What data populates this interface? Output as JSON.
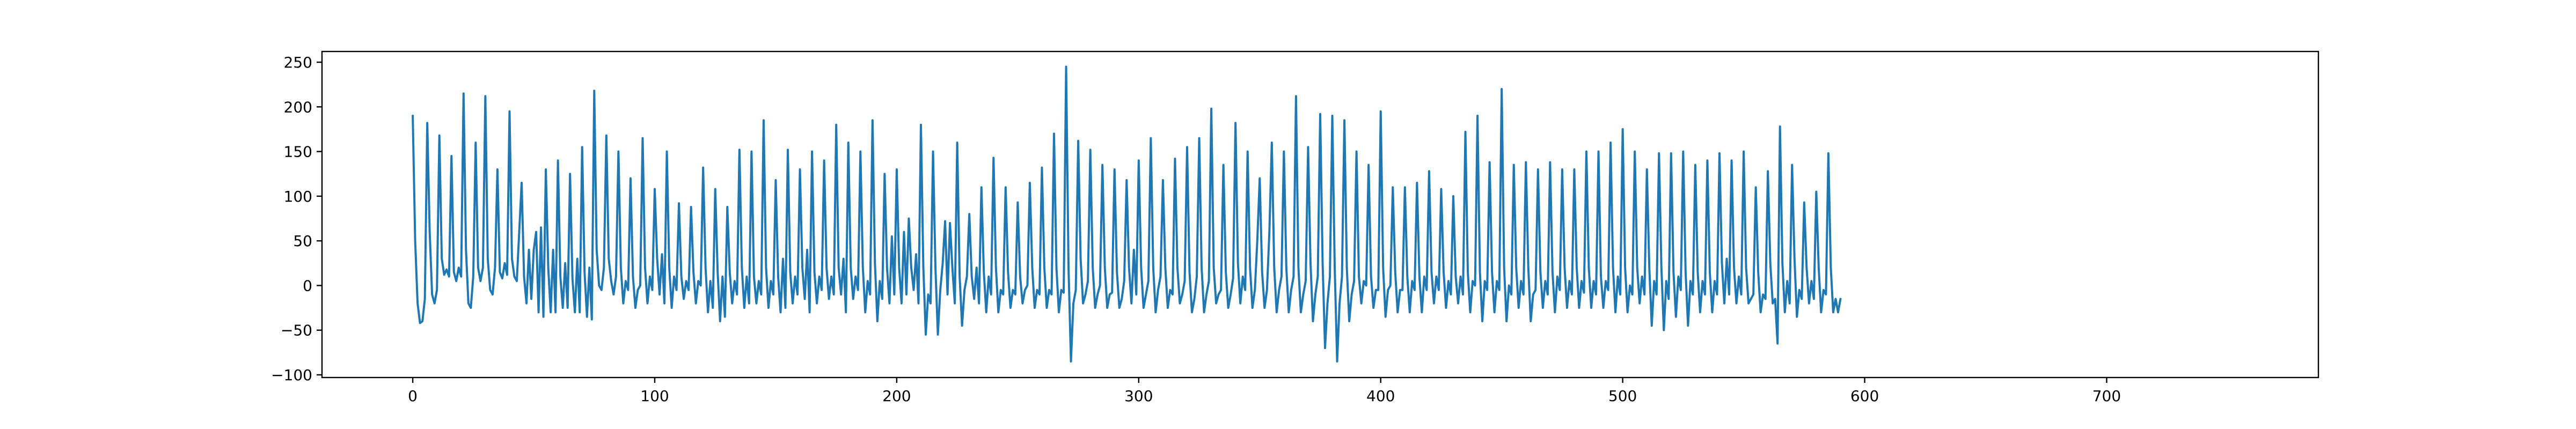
{
  "chart_data": {
    "type": "line",
    "title": "",
    "xlabel": "",
    "ylabel": "",
    "xlim": [
      -37.5,
      787.5
    ],
    "ylim": [
      -103,
      262
    ],
    "x_ticks": [
      0,
      100,
      200,
      300,
      400,
      500,
      600,
      700
    ],
    "y_ticks": [
      -100,
      -50,
      0,
      50,
      100,
      150,
      200,
      250
    ],
    "grid": false,
    "legend": "none",
    "colors": {
      "series": "#1f77b4",
      "axis": "#000000",
      "background": "#ffffff"
    },
    "series": [
      {
        "x_start": 0,
        "x_step": 1,
        "values": [
          190,
          50,
          -20,
          -42,
          -40,
          -15,
          182,
          60,
          -10,
          -20,
          -5,
          168,
          30,
          12,
          18,
          10,
          145,
          15,
          5,
          20,
          10,
          215,
          40,
          -20,
          -25,
          10,
          160,
          20,
          5,
          20,
          212,
          30,
          -5,
          -10,
          20,
          130,
          15,
          8,
          25,
          12,
          195,
          30,
          10,
          5,
          60,
          115,
          10,
          -20,
          40,
          -15,
          40,
          60,
          -30,
          65,
          -35,
          130,
          20,
          -30,
          40,
          -30,
          140,
          10,
          -25,
          25,
          -25,
          125,
          8,
          -30,
          30,
          -30,
          155,
          15,
          -35,
          20,
          -38,
          218,
          40,
          0,
          -5,
          20,
          168,
          30,
          5,
          -10,
          10,
          150,
          20,
          -20,
          5,
          -5,
          120,
          10,
          -25,
          -5,
          0,
          165,
          20,
          -20,
          10,
          -5,
          108,
          30,
          -10,
          35,
          -20,
          150,
          20,
          -25,
          10,
          -5,
          92,
          10,
          -15,
          5,
          -5,
          88,
          15,
          -20,
          5,
          0,
          132,
          20,
          -30,
          5,
          -25,
          108,
          15,
          -40,
          10,
          -35,
          88,
          15,
          -20,
          5,
          -10,
          152,
          20,
          -25,
          10,
          -20,
          150,
          10,
          -20,
          5,
          -10,
          185,
          20,
          -25,
          5,
          -10,
          118,
          10,
          -30,
          30,
          -25,
          152,
          15,
          -20,
          10,
          -10,
          130,
          20,
          -15,
          40,
          -30,
          150,
          15,
          -20,
          10,
          -5,
          140,
          20,
          -15,
          10,
          -10,
          180,
          20,
          -10,
          30,
          -30,
          160,
          20,
          -15,
          10,
          -5,
          150,
          20,
          -30,
          5,
          -10,
          185,
          25,
          -40,
          5,
          -15,
          125,
          20,
          -20,
          55,
          -10,
          130,
          20,
          -20,
          60,
          -10,
          75,
          20,
          -5,
          35,
          -20,
          180,
          20,
          -55,
          -10,
          -20,
          150,
          20,
          -55,
          -5,
          25,
          72,
          -10,
          70,
          20,
          -20,
          160,
          10,
          -45,
          -5,
          10,
          80,
          10,
          -15,
          20,
          -20,
          110,
          15,
          -30,
          10,
          -10,
          143,
          20,
          -30,
          -5,
          -10,
          110,
          15,
          -25,
          -5,
          -10,
          93,
          10,
          -20,
          -5,
          0,
          115,
          20,
          -25,
          -5,
          -10,
          132,
          20,
          -25,
          -5,
          -10,
          170,
          20,
          -30,
          -5,
          -8,
          245,
          20,
          -85,
          -20,
          -5,
          162,
          30,
          -20,
          -10,
          5,
          152,
          20,
          -25,
          -10,
          0,
          135,
          20,
          -25,
          -10,
          -8,
          130,
          15,
          -25,
          -15,
          5,
          118,
          20,
          -20,
          40,
          -10,
          140,
          20,
          -25,
          -10,
          5,
          165,
          20,
          -30,
          -5,
          10,
          118,
          20,
          -25,
          -5,
          -10,
          142,
          20,
          -20,
          -10,
          5,
          155,
          15,
          -30,
          -15,
          10,
          165,
          20,
          -30,
          -10,
          5,
          198,
          20,
          -20,
          -10,
          -5,
          135,
          15,
          -25,
          -10,
          8,
          182,
          25,
          -20,
          10,
          -5,
          150,
          20,
          -25,
          -5,
          50,
          120,
          15,
          -25,
          -5,
          60,
          160,
          20,
          -30,
          -5,
          10,
          150,
          20,
          -30,
          -5,
          10,
          212,
          20,
          -30,
          -10,
          5,
          155,
          25,
          -40,
          -10,
          10,
          192,
          25,
          -70,
          -20,
          10,
          190,
          20,
          -85,
          -20,
          10,
          185,
          20,
          -40,
          -10,
          5,
          150,
          10,
          -20,
          5,
          0,
          135,
          10,
          -25,
          -5,
          -5,
          195,
          20,
          -35,
          -5,
          0,
          110,
          15,
          -30,
          -5,
          -5,
          110,
          10,
          -30,
          5,
          -5,
          115,
          10,
          -30,
          10,
          -5,
          128,
          15,
          -20,
          10,
          -5,
          108,
          15,
          -25,
          5,
          -10,
          100,
          10,
          -20,
          10,
          -10,
          172,
          15,
          -30,
          5,
          0,
          190,
          15,
          -40,
          5,
          -5,
          138,
          15,
          -30,
          5,
          -5,
          220,
          20,
          -40,
          0,
          -10,
          135,
          20,
          -25,
          5,
          -10,
          138,
          20,
          -40,
          -10,
          -5,
          130,
          15,
          -25,
          5,
          -10,
          138,
          15,
          -30,
          10,
          -5,
          130,
          20,
          -25,
          5,
          -10,
          130,
          20,
          -25,
          5,
          -8,
          150,
          20,
          -25,
          5,
          -10,
          150,
          10,
          -25,
          5,
          -5,
          160,
          20,
          -30,
          10,
          -10,
          175,
          20,
          -30,
          0,
          -10,
          150,
          20,
          -20,
          10,
          -10,
          130,
          20,
          -45,
          5,
          -10,
          148,
          20,
          -50,
          5,
          -15,
          148,
          15,
          -35,
          10,
          -5,
          150,
          15,
          -45,
          5,
          -10,
          135,
          15,
          -30,
          5,
          -10,
          140,
          15,
          -30,
          5,
          -10,
          148,
          25,
          -20,
          30,
          -10,
          140,
          20,
          -20,
          10,
          -10,
          150,
          20,
          -20,
          -15,
          -10,
          110,
          15,
          -30,
          -10,
          -15,
          128,
          25,
          -20,
          -15,
          -65,
          178,
          25,
          -30,
          5,
          -20,
          135,
          30,
          -35,
          -5,
          -15,
          93,
          20,
          -20,
          5,
          -15,
          105,
          20,
          -30,
          -5,
          -10,
          148,
          20,
          -30,
          -15,
          -30,
          -15
        ]
      }
    ]
  }
}
